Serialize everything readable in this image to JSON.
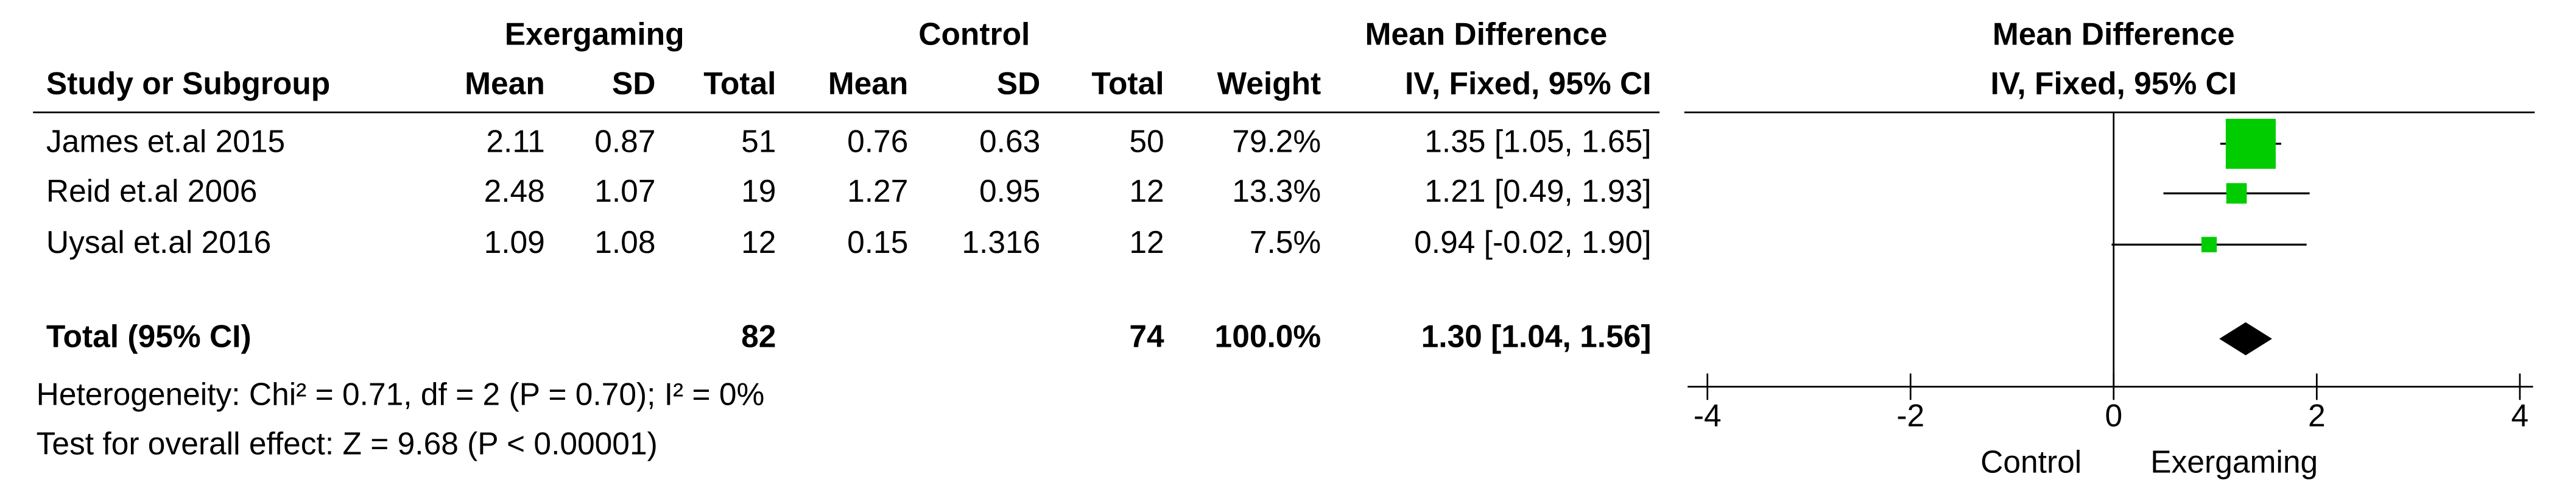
{
  "chart_data": {
    "type": "forest",
    "group_headers": [
      "Exergaming",
      "Control",
      "Mean Difference",
      "Mean Difference"
    ],
    "columns": [
      "Study or Subgroup",
      "Mean",
      "SD",
      "Total",
      "Mean",
      "SD",
      "Total",
      "Weight",
      "IV, Fixed, 95% CI",
      "IV, Fixed, 95% CI"
    ],
    "studies": [
      {
        "name": "James et.al 2015",
        "exp_mean": 2.11,
        "exp_sd": 0.87,
        "exp_total": 51,
        "ctl_mean": 0.76,
        "ctl_sd": 0.63,
        "ctl_total": 50,
        "weight": 79.2,
        "weight_label": "79.2%",
        "md": 1.35,
        "ci": [
          1.05,
          1.65
        ],
        "ci_label": "1.35 [1.05, 1.65]"
      },
      {
        "name": "Reid et.al 2006",
        "exp_mean": 2.48,
        "exp_sd": 1.07,
        "exp_total": 19,
        "ctl_mean": 1.27,
        "ctl_sd": 0.95,
        "ctl_total": 12,
        "weight": 13.3,
        "weight_label": "13.3%",
        "md": 1.21,
        "ci": [
          0.49,
          1.93
        ],
        "ci_label": "1.21 [0.49, 1.93]"
      },
      {
        "name": "Uysal et.al 2016",
        "exp_mean": 1.09,
        "exp_sd": 1.08,
        "exp_total": 12,
        "ctl_mean": 0.15,
        "ctl_sd": 1.316,
        "ctl_total": 12,
        "weight": 7.5,
        "weight_label": "7.5%",
        "md": 0.94,
        "ci": [
          -0.02,
          1.9
        ],
        "ci_label": "0.94 [-0.02, 1.90]"
      }
    ],
    "total": {
      "name": "Total (95% CI)",
      "exp_total": 82,
      "ctl_total": 74,
      "weight_label": "100.0%",
      "md": 1.3,
      "ci": [
        1.04,
        1.56
      ],
      "ci_label": "1.30 [1.04, 1.56]"
    },
    "heterogeneity": "Heterogeneity: Chi² = 0.71, df = 2 (P = 0.70); I² = 0%",
    "overall_effect": "Test for overall effect: Z = 9.68 (P < 0.00001)",
    "xlim": [
      -4,
      4
    ],
    "xticks": [
      -4,
      -2,
      0,
      2,
      4
    ],
    "x_labels": [
      "Control",
      "Exergaming"
    ],
    "color": "#00cc00"
  }
}
